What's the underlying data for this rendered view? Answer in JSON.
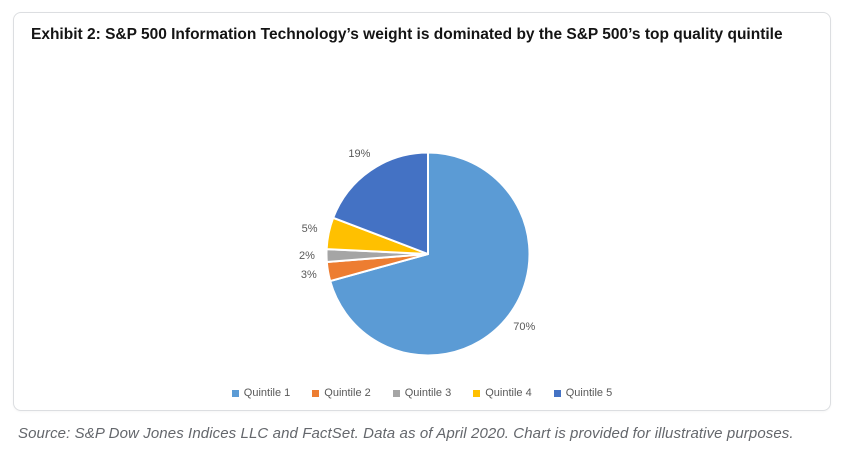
{
  "card": {
    "title": "Exhibit 2: S&P 500 Information Technology’s weight is dominated by the S&P 500’s top quality quintile"
  },
  "chart_data": {
    "type": "pie",
    "title": "Exhibit 2: S&P 500 Information Technology’s weight is dominated by the S&P 500’s top quality quintile",
    "start_angle_deg": 0,
    "direction": "clockwise",
    "data_labels": "outside",
    "legend_position": "bottom",
    "slice_border_color": "#ffffff",
    "label_color": "#595959",
    "slices": [
      {
        "label": "Quintile 1",
        "value": 70,
        "data_label": "70%",
        "color": "#5B9BD5"
      },
      {
        "label": "Quintile 2",
        "value": 3,
        "data_label": "3%",
        "color": "#ED7D31"
      },
      {
        "label": "Quintile 3",
        "value": 2,
        "data_label": "2%",
        "color": "#A5A5A5"
      },
      {
        "label": "Quintile 4",
        "value": 5,
        "data_label": "5%",
        "color": "#FFC000"
      },
      {
        "label": "Quintile 5",
        "value": 19,
        "data_label": "19%",
        "color": "#4472C4"
      }
    ]
  },
  "footer": {
    "source": "Source: S&P Dow Jones Indices LLC and FactSet. Data as of April 2020. Chart is provided for illustrative purposes."
  }
}
